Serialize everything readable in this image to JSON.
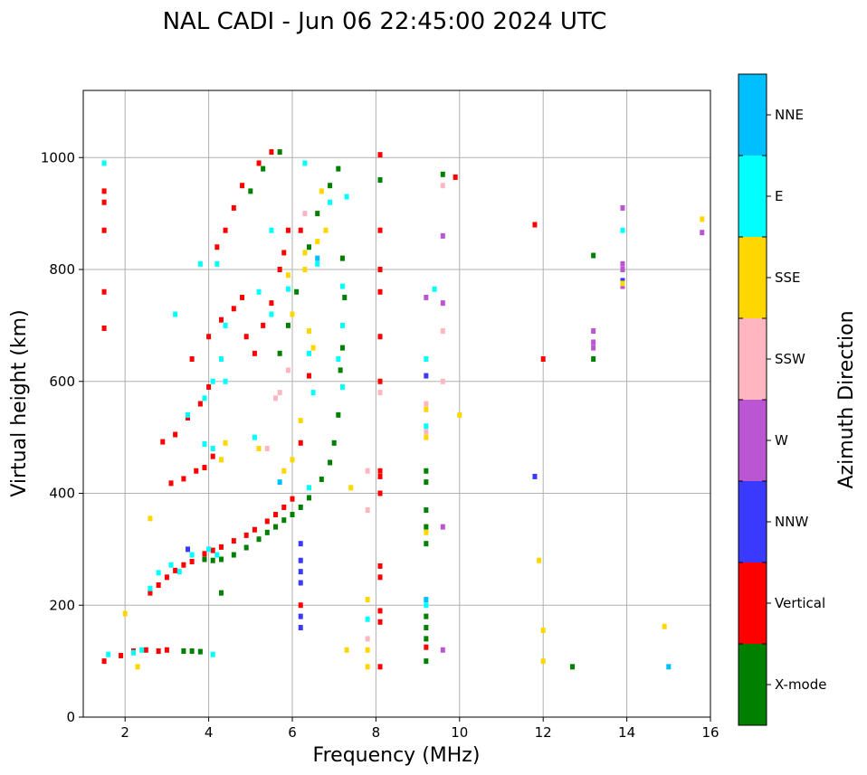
{
  "chart_data": {
    "type": "scatter",
    "title": "NAL CADI - Jun 06 22:45:00 2024 UTC",
    "xlabel": "Frequency (MHz)",
    "ylabel": "Virtual height (km)",
    "xlim": [
      1,
      16
    ],
    "ylim": [
      0,
      1120
    ],
    "xticks": [
      2,
      4,
      6,
      8,
      10,
      12,
      14,
      16
    ],
    "yticks": [
      0,
      200,
      400,
      600,
      800,
      1000
    ],
    "grid": true,
    "colorbar": {
      "label": "Azimuth Direction",
      "categories": [
        {
          "name": "NNE",
          "color": "#00bfff"
        },
        {
          "name": "E",
          "color": "#00ffff"
        },
        {
          "name": "SSE",
          "color": "#ffd700"
        },
        {
          "name": "SSW",
          "color": "#ffb6c1"
        },
        {
          "name": "W",
          "color": "#ba55d3"
        },
        {
          "name": "NNW",
          "color": "#3a3aff"
        },
        {
          "name": "Vertical",
          "color": "#ff0000"
        },
        {
          "name": "X-mode",
          "color": "#008000"
        }
      ]
    },
    "series": [
      {
        "name": "X-mode",
        "points": [
          [
            3.4,
            118
          ],
          [
            3.6,
            118
          ],
          [
            3.8,
            117
          ],
          [
            3.9,
            282
          ],
          [
            4.1,
            280
          ],
          [
            4.3,
            282
          ],
          [
            4.6,
            290
          ],
          [
            4.9,
            303
          ],
          [
            5.2,
            318
          ],
          [
            5.4,
            330
          ],
          [
            5.6,
            340
          ],
          [
            5.8,
            352
          ],
          [
            6.0,
            362
          ],
          [
            6.2,
            375
          ],
          [
            6.4,
            392
          ],
          [
            6.7,
            425
          ],
          [
            6.9,
            455
          ],
          [
            7.0,
            490
          ],
          [
            7.1,
            540
          ],
          [
            7.15,
            620
          ],
          [
            7.2,
            660
          ],
          [
            7.25,
            750
          ],
          [
            7.2,
            820
          ],
          [
            5.7,
            650
          ],
          [
            5.9,
            700
          ],
          [
            6.1,
            760
          ],
          [
            6.4,
            840
          ],
          [
            6.6,
            900
          ],
          [
            6.9,
            950
          ],
          [
            7.1,
            980
          ],
          [
            5.0,
            940
          ],
          [
            5.3,
            980
          ],
          [
            5.7,
            1010
          ],
          [
            8.1,
            960
          ],
          [
            9.2,
            440
          ],
          [
            9.2,
            420
          ],
          [
            9.2,
            370
          ],
          [
            9.2,
            340
          ],
          [
            9.2,
            310
          ],
          [
            9.2,
            180
          ],
          [
            9.2,
            160
          ],
          [
            9.2,
            140
          ],
          [
            9.2,
            100
          ],
          [
            9.6,
            970
          ],
          [
            12.7,
            90
          ],
          [
            13.2,
            825
          ],
          [
            13.2,
            640
          ],
          [
            4.3,
            222
          ],
          [
            2.6,
            224
          ]
        ]
      },
      {
        "name": "Vertical",
        "points": [
          [
            1.5,
            100
          ],
          [
            1.9,
            110
          ],
          [
            2.2,
            118
          ],
          [
            2.5,
            120
          ],
          [
            2.8,
            118
          ],
          [
            3.0,
            120
          ],
          [
            2.6,
            222
          ],
          [
            2.8,
            236
          ],
          [
            3.0,
            250
          ],
          [
            3.2,
            262
          ],
          [
            3.4,
            272
          ],
          [
            3.6,
            278
          ],
          [
            3.9,
            292
          ],
          [
            4.1,
            298
          ],
          [
            4.3,
            304
          ],
          [
            4.6,
            315
          ],
          [
            4.9,
            325
          ],
          [
            5.1,
            335
          ],
          [
            5.4,
            350
          ],
          [
            5.6,
            362
          ],
          [
            5.8,
            375
          ],
          [
            6.0,
            390
          ],
          [
            3.1,
            418
          ],
          [
            3.4,
            426
          ],
          [
            3.7,
            440
          ],
          [
            3.9,
            446
          ],
          [
            4.1,
            466
          ],
          [
            2.9,
            492
          ],
          [
            3.2,
            505
          ],
          [
            3.5,
            535
          ],
          [
            3.8,
            560
          ],
          [
            4.0,
            590
          ],
          [
            3.6,
            640
          ],
          [
            4.0,
            680
          ],
          [
            4.3,
            710
          ],
          [
            4.6,
            730
          ],
          [
            4.8,
            750
          ],
          [
            4.9,
            680
          ],
          [
            5.1,
            650
          ],
          [
            5.3,
            700
          ],
          [
            5.5,
            740
          ],
          [
            5.7,
            800
          ],
          [
            5.8,
            830
          ],
          [
            4.2,
            840
          ],
          [
            4.4,
            870
          ],
          [
            4.6,
            910
          ],
          [
            4.8,
            950
          ],
          [
            5.2,
            990
          ],
          [
            5.5,
            1010
          ],
          [
            5.9,
            870
          ],
          [
            6.2,
            870
          ],
          [
            6.4,
            610
          ],
          [
            6.2,
            490
          ],
          [
            6.2,
            200
          ],
          [
            1.5,
            870
          ],
          [
            1.5,
            920
          ],
          [
            1.5,
            940
          ],
          [
            1.5,
            760
          ],
          [
            1.5,
            695
          ],
          [
            8.1,
            250
          ],
          [
            8.1,
            270
          ],
          [
            8.1,
            400
          ],
          [
            8.1,
            430
          ],
          [
            8.1,
            440
          ],
          [
            8.1,
            600
          ],
          [
            8.1,
            680
          ],
          [
            8.1,
            760
          ],
          [
            8.1,
            800
          ],
          [
            8.1,
            870
          ],
          [
            8.1,
            1005
          ],
          [
            8.1,
            90
          ],
          [
            8.1,
            170
          ],
          [
            8.1,
            190
          ],
          [
            9.2,
            125
          ],
          [
            12.0,
            640
          ],
          [
            11.8,
            880
          ],
          [
            9.9,
            965
          ]
        ]
      },
      {
        "name": "NNW",
        "points": [
          [
            6.2,
            160
          ],
          [
            6.2,
            180
          ],
          [
            6.2,
            240
          ],
          [
            6.2,
            260
          ],
          [
            6.2,
            280
          ],
          [
            6.2,
            310
          ],
          [
            11.8,
            430
          ],
          [
            9.2,
            610
          ],
          [
            13.9,
            780
          ],
          [
            3.5,
            300
          ]
        ]
      },
      {
        "name": "W",
        "points": [
          [
            13.2,
            690
          ],
          [
            13.2,
            670
          ],
          [
            13.2,
            660
          ],
          [
            13.9,
            910
          ],
          [
            13.9,
            810
          ],
          [
            13.9,
            800
          ],
          [
            13.9,
            770
          ],
          [
            15.8,
            866
          ],
          [
            9.6,
            740
          ],
          [
            9.6,
            340
          ],
          [
            9.6,
            120
          ],
          [
            9.6,
            860
          ],
          [
            9.2,
            750
          ]
        ]
      },
      {
        "name": "SSW",
        "points": [
          [
            5.6,
            570
          ],
          [
            5.7,
            580
          ],
          [
            7.8,
            370
          ],
          [
            7.8,
            440
          ],
          [
            8.1,
            580
          ],
          [
            7.8,
            140
          ],
          [
            9.2,
            510
          ],
          [
            9.2,
            560
          ],
          [
            9.6,
            600
          ],
          [
            9.6,
            690
          ],
          [
            9.6,
            950
          ],
          [
            6.3,
            900
          ],
          [
            5.9,
            620
          ],
          [
            5.4,
            480
          ]
        ]
      },
      {
        "name": "SSE",
        "points": [
          [
            5.9,
            790
          ],
          [
            6.0,
            720
          ],
          [
            6.3,
            830
          ],
          [
            6.3,
            800
          ],
          [
            6.4,
            690
          ],
          [
            6.5,
            660
          ],
          [
            6.7,
            940
          ],
          [
            6.8,
            870
          ],
          [
            6.6,
            850
          ],
          [
            6.2,
            530
          ],
          [
            6.0,
            460
          ],
          [
            5.8,
            440
          ],
          [
            5.2,
            480
          ],
          [
            4.4,
            490
          ],
          [
            4.3,
            460
          ],
          [
            7.8,
            210
          ],
          [
            7.8,
            120
          ],
          [
            7.8,
            90
          ],
          [
            7.4,
            410
          ],
          [
            7.3,
            120
          ],
          [
            12.0,
            100
          ],
          [
            11.9,
            280
          ],
          [
            12.0,
            155
          ],
          [
            14.9,
            162
          ],
          [
            15.8,
            890
          ],
          [
            13.9,
            775
          ],
          [
            2.0,
            185
          ],
          [
            2.6,
            355
          ],
          [
            9.2,
            550
          ],
          [
            9.2,
            500
          ],
          [
            10.0,
            540
          ],
          [
            9.2,
            330
          ],
          [
            2.3,
            90
          ]
        ]
      },
      {
        "name": "E",
        "points": [
          [
            1.5,
            990
          ],
          [
            2.2,
            115
          ],
          [
            2.4,
            120
          ],
          [
            3.3,
            260
          ],
          [
            3.6,
            290
          ],
          [
            4.0,
            300
          ],
          [
            4.2,
            290
          ],
          [
            4.1,
            480
          ],
          [
            3.9,
            488
          ],
          [
            3.9,
            570
          ],
          [
            4.1,
            600
          ],
          [
            4.4,
            600
          ],
          [
            4.4,
            700
          ],
          [
            4.3,
            640
          ],
          [
            4.2,
            810
          ],
          [
            5.2,
            760
          ],
          [
            5.5,
            720
          ],
          [
            5.9,
            765
          ],
          [
            6.4,
            650
          ],
          [
            6.5,
            580
          ],
          [
            7.2,
            770
          ],
          [
            7.2,
            700
          ],
          [
            7.2,
            590
          ],
          [
            7.1,
            640
          ],
          [
            7.3,
            930
          ],
          [
            7.8,
            175
          ],
          [
            9.2,
            640
          ],
          [
            9.2,
            520
          ],
          [
            9.2,
            200
          ],
          [
            9.4,
            765
          ],
          [
            13.9,
            870
          ],
          [
            5.5,
            870
          ],
          [
            6.3,
            990
          ],
          [
            6.9,
            920
          ],
          [
            3.2,
            720
          ],
          [
            3.8,
            810
          ],
          [
            2.6,
            230
          ],
          [
            2.8,
            258
          ],
          [
            3.1,
            272
          ],
          [
            4.1,
            112
          ],
          [
            1.6,
            112
          ],
          [
            6.4,
            410
          ],
          [
            6.6,
            810
          ],
          [
            5.1,
            500
          ],
          [
            3.5,
            540
          ]
        ]
      },
      {
        "name": "NNE",
        "points": [
          [
            9.2,
            210
          ],
          [
            15.0,
            90
          ],
          [
            5.7,
            420
          ],
          [
            6.6,
            820
          ]
        ]
      }
    ]
  }
}
